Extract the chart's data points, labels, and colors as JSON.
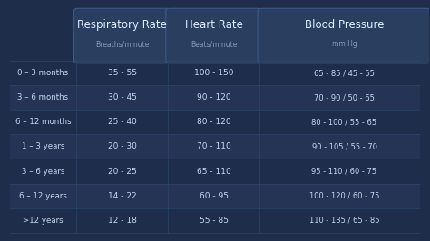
{
  "bg_color": "#1e2d4a",
  "header_bg": "#2a3f60",
  "row_colors": [
    "#1e2d4a",
    "#253354"
  ],
  "header_border": "#3a5a8a",
  "text_color": "#c8d8f0",
  "header_text_color": "#ddeeff",
  "subheader_text_color": "#8899bb",
  "col_headers": [
    "Respiratory Rate",
    "Heart Rate",
    "Blood Pressure"
  ],
  "col_subheaders": [
    "Breaths/minute",
    "Beats/minute",
    "mm Hg"
  ],
  "row_labels": [
    "0 – 3 months",
    "3 – 6 months",
    "6 – 12 months",
    "1 – 3 years",
    "3 – 6 years",
    "6 – 12 years",
    ">12 years"
  ],
  "rr_values": [
    "35 - 55",
    "30 - 45",
    "25 - 40",
    "20 - 30",
    "20 - 25",
    "14 - 22",
    "12 - 18"
  ],
  "hr_values": [
    "100 - 150",
    "90 - 120",
    "80 - 120",
    "70 - 110",
    "65 - 110",
    "60 - 95",
    "55 - 85"
  ],
  "bp_values": [
    "65 - 85 / 45 - 55",
    "70 - 90 / 50 - 65",
    "80 - 100 / 55 - 65",
    "90 - 105 / 55 - 70",
    "95 - 110 / 60 - 75",
    "100 - 120 / 60 - 75",
    "110 - 135 / 65 - 85"
  ]
}
